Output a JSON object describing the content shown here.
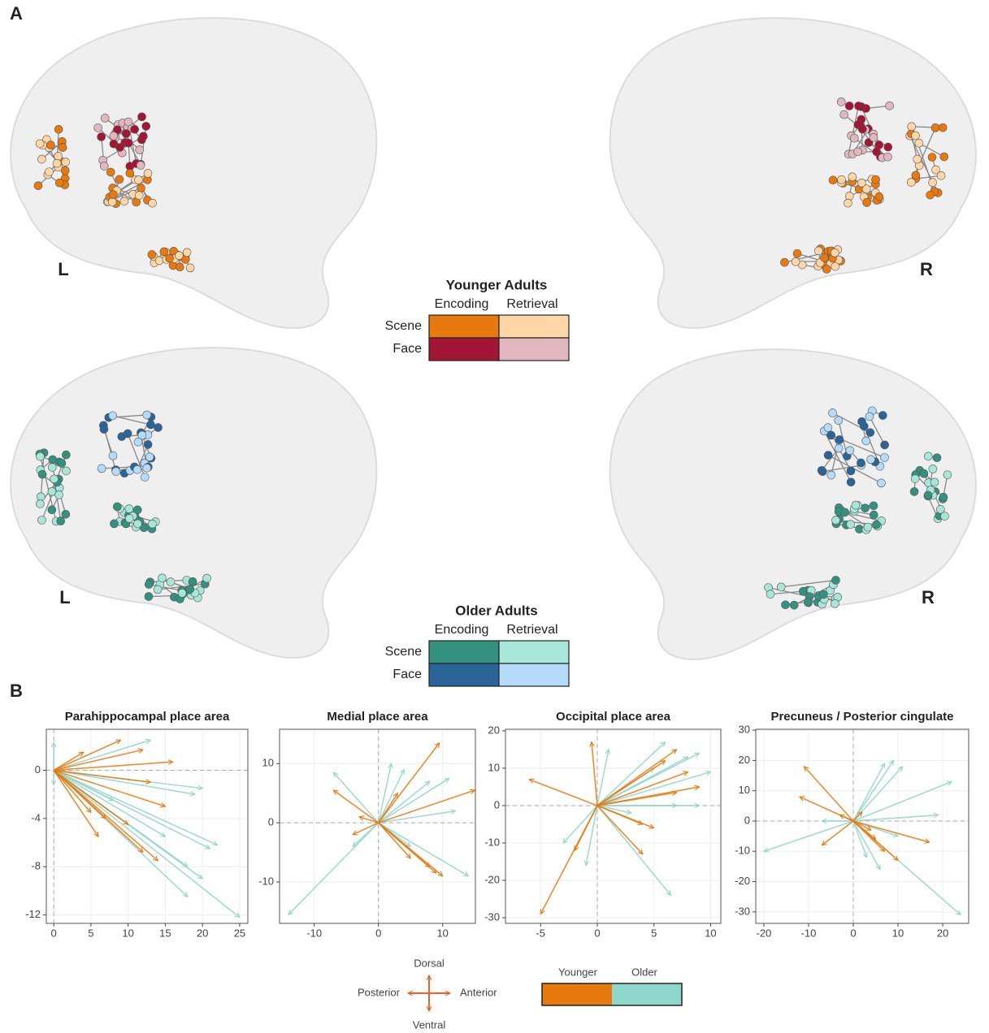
{
  "panel_labels": [
    "A",
    "B"
  ],
  "brain_labels": [
    "L",
    "R",
    "L",
    "R"
  ],
  "legends": [
    {
      "title": "Younger Adults",
      "columns": [
        "Encoding",
        "Retrieval"
      ],
      "rows": [
        {
          "name": "Scene",
          "colors": [
            "#e8790f",
            "#ffd6a5"
          ]
        },
        {
          "name": "Face",
          "colors": [
            "#a31535",
            "#e2b7c0"
          ]
        }
      ]
    },
    {
      "title": "Older Adults",
      "columns": [
        "Encoding",
        "Retrieval"
      ],
      "rows": [
        {
          "name": "Scene",
          "colors": [
            "#35917f",
            "#a8e6da"
          ]
        },
        {
          "name": "Face",
          "colors": [
            "#2b6499",
            "#b5dbfa"
          ]
        }
      ]
    }
  ],
  "direction_legend": {
    "up": "Dorsal",
    "down": "Ventral",
    "left": "Posterior",
    "right": "Anterior",
    "color": "#e8622a"
  },
  "chart_data": [
    {
      "type": "vector",
      "title": "Parahippocampal place area",
      "xlim": [
        -1,
        26.1
      ],
      "ylim": [
        -12.7,
        3.4
      ],
      "xticks": [
        0,
        5,
        10,
        15,
        20,
        25
      ],
      "yticks": [
        0,
        -4,
        -8,
        -12
      ],
      "grid": true,
      "series": [
        {
          "name": "Younger",
          "color": "#e8790f",
          "x": [
            9,
            12,
            16,
            13,
            15,
            10,
            6,
            12,
            14,
            7,
            5,
            4
          ],
          "values": [
            2.5,
            1.7,
            0.7,
            -1,
            -3,
            -4.5,
            -5.5,
            -6.8,
            -7.5,
            -4,
            -3.5,
            1.5
          ]
        },
        {
          "name": "Older",
          "color": "#8fd6cc",
          "x": [
            13,
            20,
            19,
            21,
            22,
            18,
            18,
            25,
            15,
            20,
            0,
            0,
            8
          ],
          "values": [
            2.5,
            -1.5,
            -2,
            -6.5,
            -6.2,
            -8,
            -10.5,
            -12.2,
            -5.5,
            -9,
            2.3,
            -1.2,
            -2.5
          ]
        }
      ]
    },
    {
      "type": "vector",
      "title": "Medial place area",
      "xlim": [
        -15.4,
        15.1
      ],
      "ylim": [
        -17,
        15.8
      ],
      "xticks": [
        -10,
        0,
        10
      ],
      "yticks": [
        -10,
        0,
        10
      ],
      "grid": true,
      "series": [
        {
          "name": "Younger",
          "color": "#e8790f",
          "x": [
            9.5,
            15,
            8,
            10,
            9,
            -7,
            -4,
            5,
            -3,
            3
          ],
          "values": [
            13.5,
            5.5,
            -7.5,
            -9,
            -8.5,
            5.5,
            -2,
            -6,
            1,
            5
          ]
        },
        {
          "name": "Older",
          "color": "#8fd6cc",
          "x": [
            -7,
            8,
            12,
            11,
            14,
            -14,
            4,
            2,
            -4,
            5
          ],
          "values": [
            8.5,
            7,
            2,
            7.5,
            -9,
            -15.5,
            9,
            10,
            -4,
            -4
          ]
        }
      ]
    },
    {
      "type": "vector",
      "title": "Occipital place area",
      "xlim": [
        -8.1,
        10.9
      ],
      "ylim": [
        -31.5,
        20.4
      ],
      "xticks": [
        -5,
        0,
        5,
        10
      ],
      "yticks": [
        -30,
        -20,
        -10,
        0,
        10,
        20
      ],
      "grid": true,
      "series": [
        {
          "name": "Younger",
          "color": "#e8790f",
          "x": [
            -6,
            -5,
            -0.5,
            7,
            8,
            9,
            7,
            5,
            4,
            6,
            -2,
            4
          ],
          "values": [
            7,
            -29,
            17,
            15,
            9,
            5,
            3.5,
            -6,
            -13,
            12,
            -12,
            -5
          ]
        },
        {
          "name": "Older",
          "color": "#8fd6cc",
          "x": [
            6,
            9,
            10,
            8,
            6.5,
            9,
            7,
            -1,
            -3,
            1,
            5,
            3
          ],
          "values": [
            17,
            14,
            9,
            13,
            -24,
            0,
            0,
            -16,
            -10,
            15,
            10,
            -2
          ]
        }
      ]
    },
    {
      "type": "vector",
      "title": "Precuneus / Posterior cingulate",
      "xlim": [
        -21.8,
        25.8
      ],
      "ylim": [
        -33.8,
        30.3
      ],
      "xticks": [
        -20,
        -10,
        0,
        10,
        20
      ],
      "yticks": [
        -30,
        -20,
        -10,
        0,
        10,
        20,
        30
      ],
      "grid": true,
      "series": [
        {
          "name": "Younger",
          "color": "#e8790f",
          "x": [
            -11,
            -12,
            -7,
            7,
            10,
            17,
            4,
            -3,
            2,
            5
          ],
          "values": [
            18,
            8,
            -8,
            -10,
            -13,
            -7,
            -3,
            2,
            3,
            -6
          ]
        },
        {
          "name": "Older",
          "color": "#8fd6cc",
          "x": [
            7,
            9,
            11,
            22,
            19,
            24,
            -20,
            6,
            3,
            -7,
            10
          ],
          "values": [
            19,
            20,
            18,
            13,
            2,
            -31,
            -10,
            -16,
            -12,
            0,
            -5
          ]
        }
      ]
    }
  ]
}
